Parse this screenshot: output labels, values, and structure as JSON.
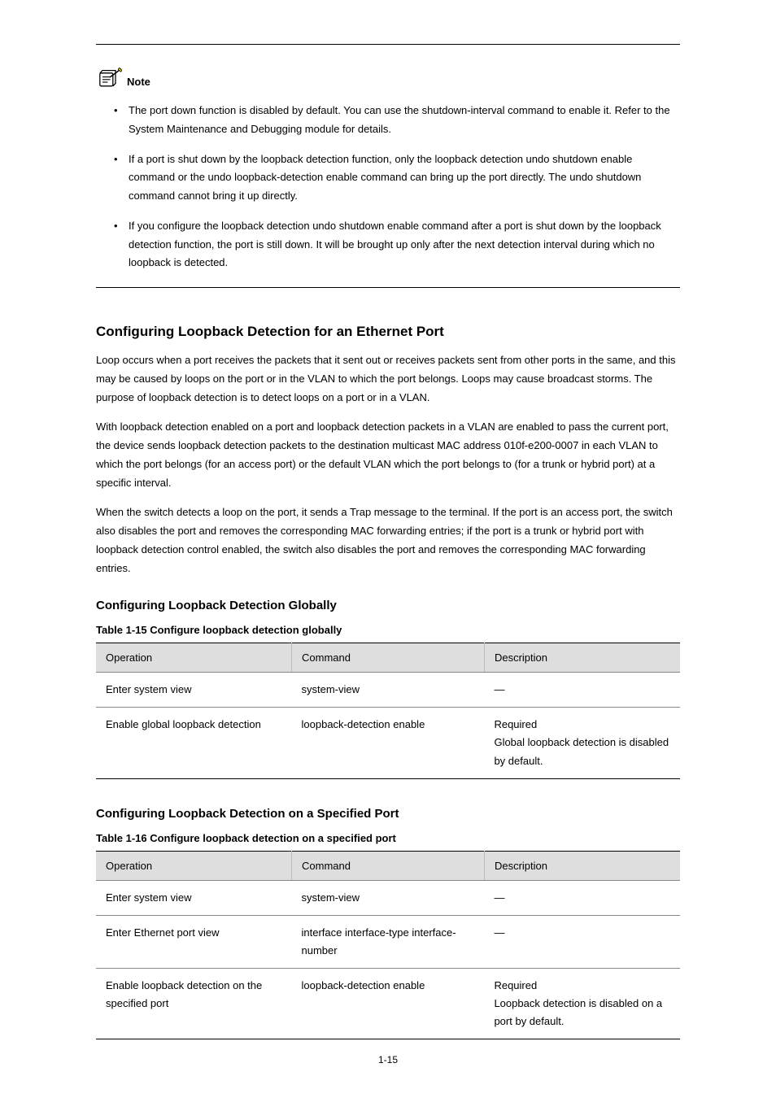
{
  "note": {
    "label": "Note",
    "icon_name": "note-icon",
    "items": [
      "The port down function is disabled by default. You can use the shutdown-interval command to enable it. Refer to the System Maintenance and Debugging module for details.",
      "If a port is shut down by the loopback detection function, only the loopback detection undo shutdown enable command or the undo loopback-detection enable command can bring up the port directly. The undo shutdown command cannot bring it up directly.",
      "If you configure the loopback detection undo shutdown enable command after a port is shut down by the loopback detection function, the port is still down. It will be brought up only after the next detection interval during which no loopback is detected."
    ]
  },
  "section": {
    "title": "Configuring Loopback Detection for an Ethernet Port",
    "paras": [
      "Loop occurs when a port receives the packets that it sent out or receives packets sent from other ports in the same, and this may be caused by loops on the port or in the VLAN to which the port belongs. Loops may cause broadcast storms. The purpose of loopback detection is to detect loops on a port or in a VLAN.",
      "With loopback detection enabled on a port and loopback detection packets in a VLAN are enabled to pass the current port, the device sends loopback detection packets to the destination multicast MAC address 010f-e200-0007 in each VLAN to which the port belongs (for an access port) or the default VLAN which the port belongs to (for a trunk or hybrid port) at a specific interval.",
      "When the switch detects a loop on the port, it sends a Trap message to the terminal. If the port is an access port, the switch also disables the port and removes the corresponding MAC forwarding entries; if the port is a trunk or hybrid port with loopback detection control enabled, the switch also disables the port and removes the corresponding MAC forwarding entries."
    ]
  },
  "global_cfg": {
    "heading": "Configuring Loopback Detection Globally",
    "caption": "Table 1-15 Configure loopback detection globally",
    "headers": [
      "Operation",
      "Command",
      "Description"
    ],
    "rows": [
      [
        "Enter system view",
        "system-view",
        "—"
      ],
      [
        "Enable global loopback detection",
        "loopback-detection enable",
        "Required\nGlobal loopback detection is disabled by default."
      ]
    ]
  },
  "port_cfg": {
    "heading": "Configuring Loopback Detection on a Specified Port",
    "caption": "Table 1-16 Configure loopback detection on a specified port",
    "headers": [
      "Operation",
      "Command",
      "Description"
    ],
    "rows": [
      [
        "Enter system view",
        "system-view",
        "—"
      ],
      [
        "Enter Ethernet port view",
        "interface interface-type interface-number",
        "—"
      ],
      [
        "Enable loopback detection on the specified port",
        "loopback-detection enable",
        "Required\nLoopback detection is disabled on a port by default."
      ]
    ]
  },
  "page_number": "1-15"
}
